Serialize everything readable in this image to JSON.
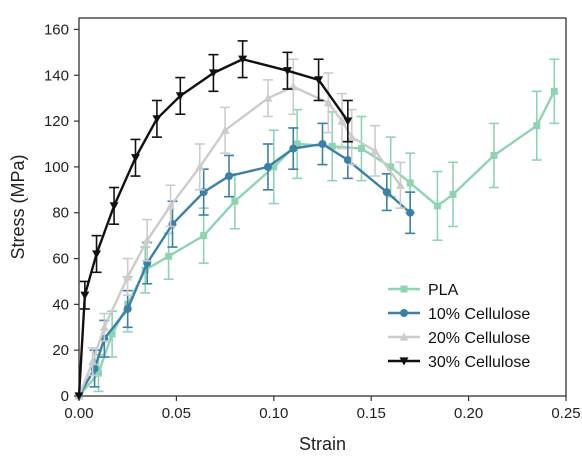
{
  "chart_data": {
    "type": "line",
    "title": "",
    "xlabel": "Strain",
    "ylabel": "Stress (MPa)",
    "xlim": [
      0,
      0.25
    ],
    "ylim": [
      0,
      165
    ],
    "xticks": [
      "0.00",
      "0.05",
      "0.10",
      "0.15",
      "0.20",
      "0.25"
    ],
    "yticks": [
      "0",
      "20",
      "40",
      "60",
      "80",
      "100",
      "120",
      "140",
      "160"
    ],
    "error_bars": true,
    "grid": false,
    "legend_position": "bottom-right",
    "series": [
      {
        "name": "PLA",
        "color": "#8fd4b2",
        "marker": "square",
        "x": [
          0,
          0.01,
          0.017,
          0.025,
          0.034,
          0.046,
          0.064,
          0.08,
          0.1,
          0.112,
          0.13,
          0.145,
          0.16,
          0.17,
          0.184,
          0.192,
          0.213,
          0.235,
          0.244
        ],
        "y": [
          0,
          10,
          27,
          40,
          55,
          61,
          70,
          85,
          100,
          110,
          109,
          108,
          100,
          93,
          83,
          88,
          105,
          118,
          133
        ],
        "err": [
          0,
          8,
          10,
          12,
          10,
          10,
          12,
          12,
          16,
          15,
          15,
          14,
          13,
          13,
          15,
          14,
          14,
          15,
          14
        ]
      },
      {
        "name": "10% Cellulose",
        "color": "#3c7fa8",
        "marker": "circle",
        "x": [
          0,
          0.008,
          0.013,
          0.025,
          0.035,
          0.048,
          0.064,
          0.077,
          0.097,
          0.11,
          0.125,
          0.138,
          0.158,
          0.17
        ],
        "y": [
          0,
          12,
          25,
          38,
          58,
          75,
          89,
          96,
          100,
          108,
          110,
          103,
          89,
          80
        ],
        "err": [
          0,
          8,
          8,
          8,
          9,
          10,
          10,
          9,
          10,
          9,
          9,
          8,
          8,
          9
        ]
      },
      {
        "name": "20% Cellulose",
        "color": "#cccccc",
        "marker": "triangle",
        "x": [
          0,
          0.007,
          0.013,
          0.025,
          0.035,
          0.047,
          0.062,
          0.075,
          0.097,
          0.11,
          0.128,
          0.135,
          0.14,
          0.152,
          0.165
        ],
        "y": [
          0,
          15,
          30,
          52,
          68,
          83,
          100,
          116,
          130,
          135,
          128,
          120,
          113,
          107,
          92
        ],
        "err": [
          0,
          6,
          6,
          8,
          9,
          9,
          10,
          10,
          8,
          12,
          13,
          12,
          12,
          11,
          10
        ]
      },
      {
        "name": "30% Cellulose",
        "color": "#111111",
        "marker": "triangle-down",
        "x": [
          0,
          0.003,
          0.009,
          0.018,
          0.029,
          0.04,
          0.052,
          0.069,
          0.084,
          0.107,
          0.123,
          0.138
        ],
        "y": [
          0,
          44,
          62,
          83,
          104,
          121,
          131,
          141,
          147,
          142,
          138,
          120
        ],
        "err": [
          0,
          6,
          8,
          8,
          8,
          8,
          8,
          8,
          8,
          8,
          9,
          9
        ]
      }
    ]
  }
}
